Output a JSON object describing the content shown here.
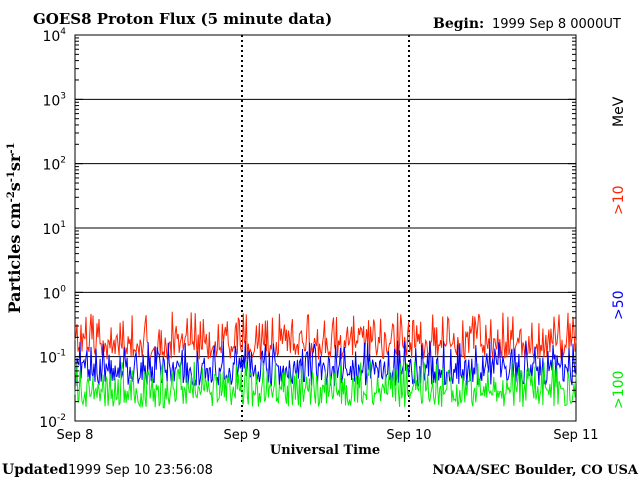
{
  "chart_data": {
    "type": "line",
    "title": "GOES8 Proton Flux (5 minute data)",
    "begin_label": "Begin:",
    "begin_value": "1999 Sep 8 0000UT",
    "xlabel": "Universal Time",
    "ylabel": "Particles cm",
    "ylabel_sup1": "-2",
    "ylabel_mid": "s",
    "ylabel_sup2": "-1",
    "ylabel_end": "sr",
    "ylabel_sup3": "-1",
    "yscale": "log",
    "ylim": [
      0.01,
      10000
    ],
    "y_ticks": [
      {
        "base": "10",
        "exp": "4"
      },
      {
        "base": "10",
        "exp": "3"
      },
      {
        "base": "10",
        "exp": "2"
      },
      {
        "base": "10",
        "exp": "1"
      },
      {
        "base": "10",
        "exp": "0"
      },
      {
        "base": "10",
        "exp": "-1"
      },
      {
        "base": "10",
        "exp": "-2"
      }
    ],
    "x_ticks": [
      "Sep 8",
      "Sep 9",
      "Sep 10",
      "Sep 11"
    ],
    "xlim_days": [
      0,
      3
    ],
    "grid": true,
    "series": [
      {
        "name": ">10",
        "unit": "MeV",
        "color": "#ff2200",
        "base": 0.16,
        "min": 0.09,
        "max": 0.5
      },
      {
        "name": ">50",
        "color": "#0000ff",
        "base": 0.065,
        "min": 0.035,
        "max": 0.18
      },
      {
        "name": ">100",
        "color": "#00ee00",
        "base": 0.03,
        "min": 0.016,
        "max": 0.085
      }
    ]
  },
  "footer": {
    "updated_label": "Updated",
    "updated_value": "1999 Sep 10 23:56:08",
    "source": "NOAA/SEC Boulder, CO USA"
  }
}
